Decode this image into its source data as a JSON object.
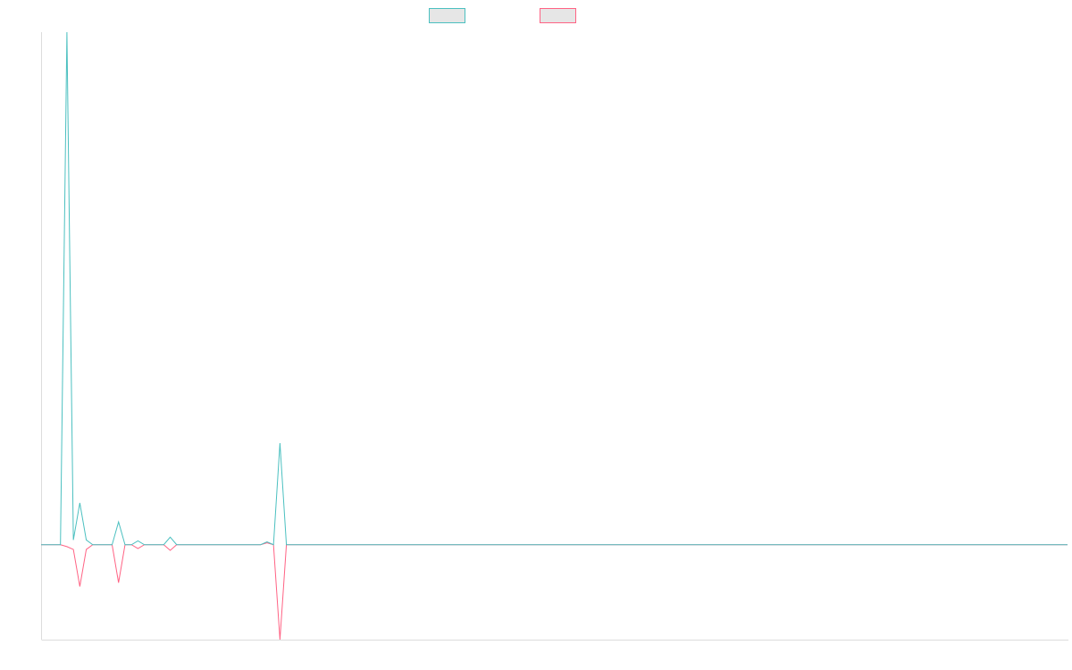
{
  "chart_data": {
    "type": "line",
    "grid": false,
    "legend_position": "top-center",
    "x_count": 160,
    "ylim": [
      -100,
      540
    ],
    "series": [
      {
        "color": "#4bc0c0",
        "fill": "#e6e6e6",
        "points": [
          [
            0,
            0
          ],
          [
            1,
            0
          ],
          [
            2,
            0
          ],
          [
            3,
            0
          ],
          [
            4,
            540
          ],
          [
            5,
            5
          ],
          [
            6,
            44
          ],
          [
            7,
            5
          ],
          [
            8,
            0
          ],
          [
            9,
            0
          ],
          [
            10,
            0
          ],
          [
            11,
            0
          ],
          [
            12,
            24
          ],
          [
            13,
            0
          ],
          [
            14,
            0
          ],
          [
            15,
            4
          ],
          [
            16,
            0
          ],
          [
            17,
            0
          ],
          [
            18,
            0
          ],
          [
            19,
            0
          ],
          [
            20,
            8
          ],
          [
            21,
            0
          ],
          [
            22,
            0
          ],
          [
            23,
            0
          ],
          [
            24,
            0
          ],
          [
            25,
            0
          ],
          [
            26,
            0
          ],
          [
            27,
            0
          ],
          [
            28,
            0
          ],
          [
            29,
            0
          ],
          [
            30,
            0
          ],
          [
            31,
            0
          ],
          [
            32,
            0
          ],
          [
            33,
            0
          ],
          [
            34,
            0
          ],
          [
            35,
            3
          ],
          [
            36,
            0
          ],
          [
            37,
            107
          ],
          [
            38,
            0
          ]
        ]
      },
      {
        "color": "#ff6384",
        "fill": "#e6e6e6",
        "points": [
          [
            0,
            0
          ],
          [
            1,
            0
          ],
          [
            2,
            0
          ],
          [
            3,
            0
          ],
          [
            4,
            -2
          ],
          [
            5,
            -5
          ],
          [
            6,
            -44
          ],
          [
            7,
            -5
          ],
          [
            8,
            0
          ],
          [
            9,
            0
          ],
          [
            10,
            0
          ],
          [
            11,
            0
          ],
          [
            12,
            -40
          ],
          [
            13,
            0
          ],
          [
            14,
            0
          ],
          [
            15,
            -4
          ],
          [
            16,
            0
          ],
          [
            17,
            0
          ],
          [
            18,
            0
          ],
          [
            19,
            0
          ],
          [
            20,
            -6
          ],
          [
            21,
            0
          ],
          [
            22,
            0
          ],
          [
            23,
            0
          ],
          [
            24,
            0
          ],
          [
            25,
            0
          ],
          [
            26,
            0
          ],
          [
            27,
            0
          ],
          [
            28,
            0
          ],
          [
            29,
            0
          ],
          [
            30,
            0
          ],
          [
            31,
            0
          ],
          [
            32,
            0
          ],
          [
            33,
            0
          ],
          [
            34,
            0
          ],
          [
            35,
            2
          ],
          [
            36,
            0
          ],
          [
            37,
            -100
          ],
          [
            38,
            0
          ]
        ]
      }
    ]
  }
}
